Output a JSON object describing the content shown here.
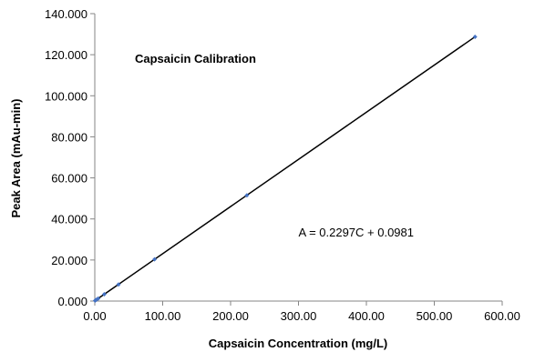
{
  "chart_data": {
    "type": "scatter",
    "title": "Capsaicin Calibration",
    "xlabel": "Capsaicin Concentration (mg/L)",
    "ylabel": "Peak Area (mAu-min)",
    "xlim": [
      0,
      600
    ],
    "ylim": [
      0,
      140
    ],
    "x_ticks": [
      "0.00",
      "100.00",
      "200.00",
      "300.00",
      "400.00",
      "500.00",
      "600.00"
    ],
    "y_ticks": [
      "0.000",
      "20.000",
      "40.000",
      "60.000",
      "80.000",
      "100.000",
      "120.000",
      "140.000"
    ],
    "x_tick_values": [
      0,
      100,
      200,
      300,
      400,
      500,
      600
    ],
    "y_tick_values": [
      0,
      20,
      40,
      60,
      80,
      100,
      120,
      140
    ],
    "grid": false,
    "legend": "none",
    "series": [
      {
        "x": [
          0.5,
          2,
          5,
          14,
          35,
          88,
          224,
          560
        ],
        "y": [
          0.2,
          0.6,
          1.2,
          3.3,
          8.1,
          20.3,
          51.5,
          128.7
        ],
        "color": "#4472c4"
      }
    ],
    "trendline": {
      "slope": 0.2297,
      "intercept": 0.0981,
      "x_range": [
        0,
        560
      ],
      "color": "#000000",
      "equation": "A = 0.2297C + 0.0981",
      "equation_anchor": {
        "x": 300,
        "y": 31.5
      }
    }
  }
}
